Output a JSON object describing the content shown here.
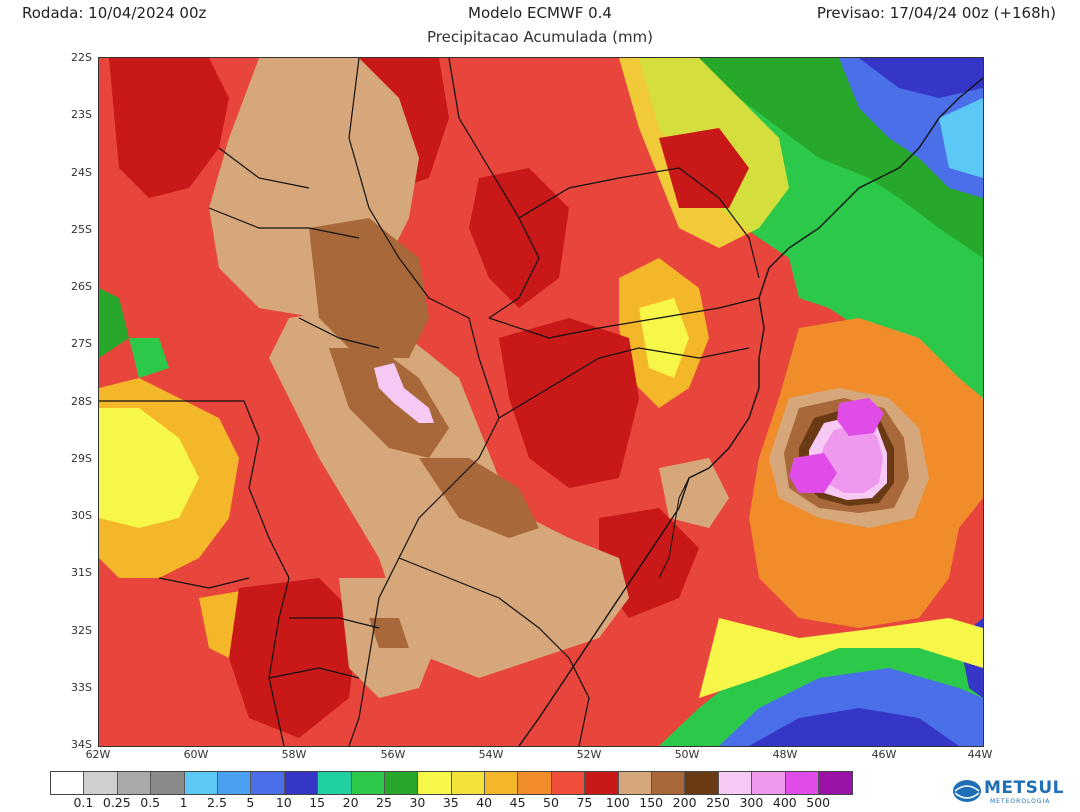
{
  "header": {
    "left": "Rodada: 10/04/2024 00z",
    "center": "Modelo ECMWF 0.4",
    "right": "Previsao: 17/04/24 00z (+168h)",
    "subtitle": "Precipitacao Acumulada (mm)"
  },
  "lat_labels": [
    "22S",
    "23S",
    "24S",
    "25S",
    "26S",
    "27S",
    "28S",
    "29S",
    "30S",
    "31S",
    "32S",
    "33S",
    "34S"
  ],
  "lon_labels": [
    "62W",
    "60W",
    "58W",
    "56W",
    "54W",
    "52W",
    "50W",
    "48W",
    "46W",
    "44W"
  ],
  "legend": {
    "labels": [
      "0.1",
      "0.25",
      "0.5",
      "1",
      "2.5",
      "5",
      "10",
      "15",
      "20",
      "25",
      "30",
      "35",
      "40",
      "45",
      "50",
      "75",
      "100",
      "150",
      "200",
      "250",
      "300",
      "400",
      "500"
    ],
    "colors": [
      "#ffffff",
      "#cfcfcf",
      "#a9a9a9",
      "#8a8a8a",
      "#5bc8f5",
      "#4a9ff0",
      "#4a6fe8",
      "#3535c8",
      "#20d0a0",
      "#2cc84a",
      "#27a82a",
      "#f7f74a",
      "#f2e23a",
      "#f5b72a",
      "#f08c2a",
      "#f04d3a",
      "#c81818",
      "#d6a77a",
      "#a8683a",
      "#6a3a15",
      "#f7c9f5",
      "#ee99ee",
      "#e04ce8",
      "#9b12a8"
    ]
  },
  "logo": {
    "name": "METSUL",
    "tagline": "METEOROLOGIA"
  },
  "colors": {
    "rain_high": "#c81818",
    "rain_mid": "#e8453c",
    "rain_low_brown": "#d6a77a",
    "rain_peak_purple": "#e04ce8"
  }
}
